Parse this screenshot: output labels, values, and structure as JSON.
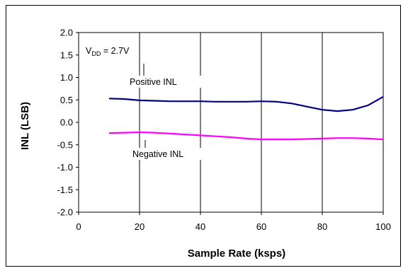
{
  "chart_data": {
    "type": "line",
    "xlabel": "Sample Rate (ksps)",
    "ylabel": "INL (LSB)",
    "xlim": [
      0,
      100
    ],
    "ylim": [
      -2.0,
      2.0
    ],
    "x_ticks": [
      "0",
      "20",
      "40",
      "60",
      "80",
      "100"
    ],
    "y_ticks": [
      "2.0",
      "1.5",
      "1.0",
      "0.5",
      "0.0",
      "-0.5",
      "-1.0",
      "-1.5",
      "-2.0"
    ],
    "grid": "vertical",
    "annotation": {
      "prefix": "V",
      "sub": "DD",
      "suffix": " = 2.7V"
    },
    "series": [
      {
        "name": "Positive INL",
        "color": "#000080",
        "x": [
          10,
          15,
          20,
          25,
          30,
          35,
          40,
          45,
          50,
          55,
          60,
          65,
          70,
          75,
          80,
          85,
          90,
          95,
          100
        ],
        "y": [
          0.53,
          0.52,
          0.49,
          0.48,
          0.47,
          0.47,
          0.47,
          0.46,
          0.46,
          0.46,
          0.47,
          0.46,
          0.42,
          0.35,
          0.28,
          0.25,
          0.28,
          0.38,
          0.57
        ]
      },
      {
        "name": "Negative INL",
        "color": "#ff00ff",
        "x": [
          10,
          15,
          20,
          25,
          30,
          35,
          40,
          45,
          50,
          55,
          60,
          65,
          70,
          75,
          80,
          85,
          90,
          95,
          100
        ],
        "y": [
          -0.24,
          -0.23,
          -0.22,
          -0.23,
          -0.25,
          -0.27,
          -0.29,
          -0.31,
          -0.33,
          -0.36,
          -0.38,
          -0.38,
          -0.38,
          -0.37,
          -0.36,
          -0.35,
          -0.35,
          -0.36,
          -0.38
        ]
      }
    ]
  }
}
